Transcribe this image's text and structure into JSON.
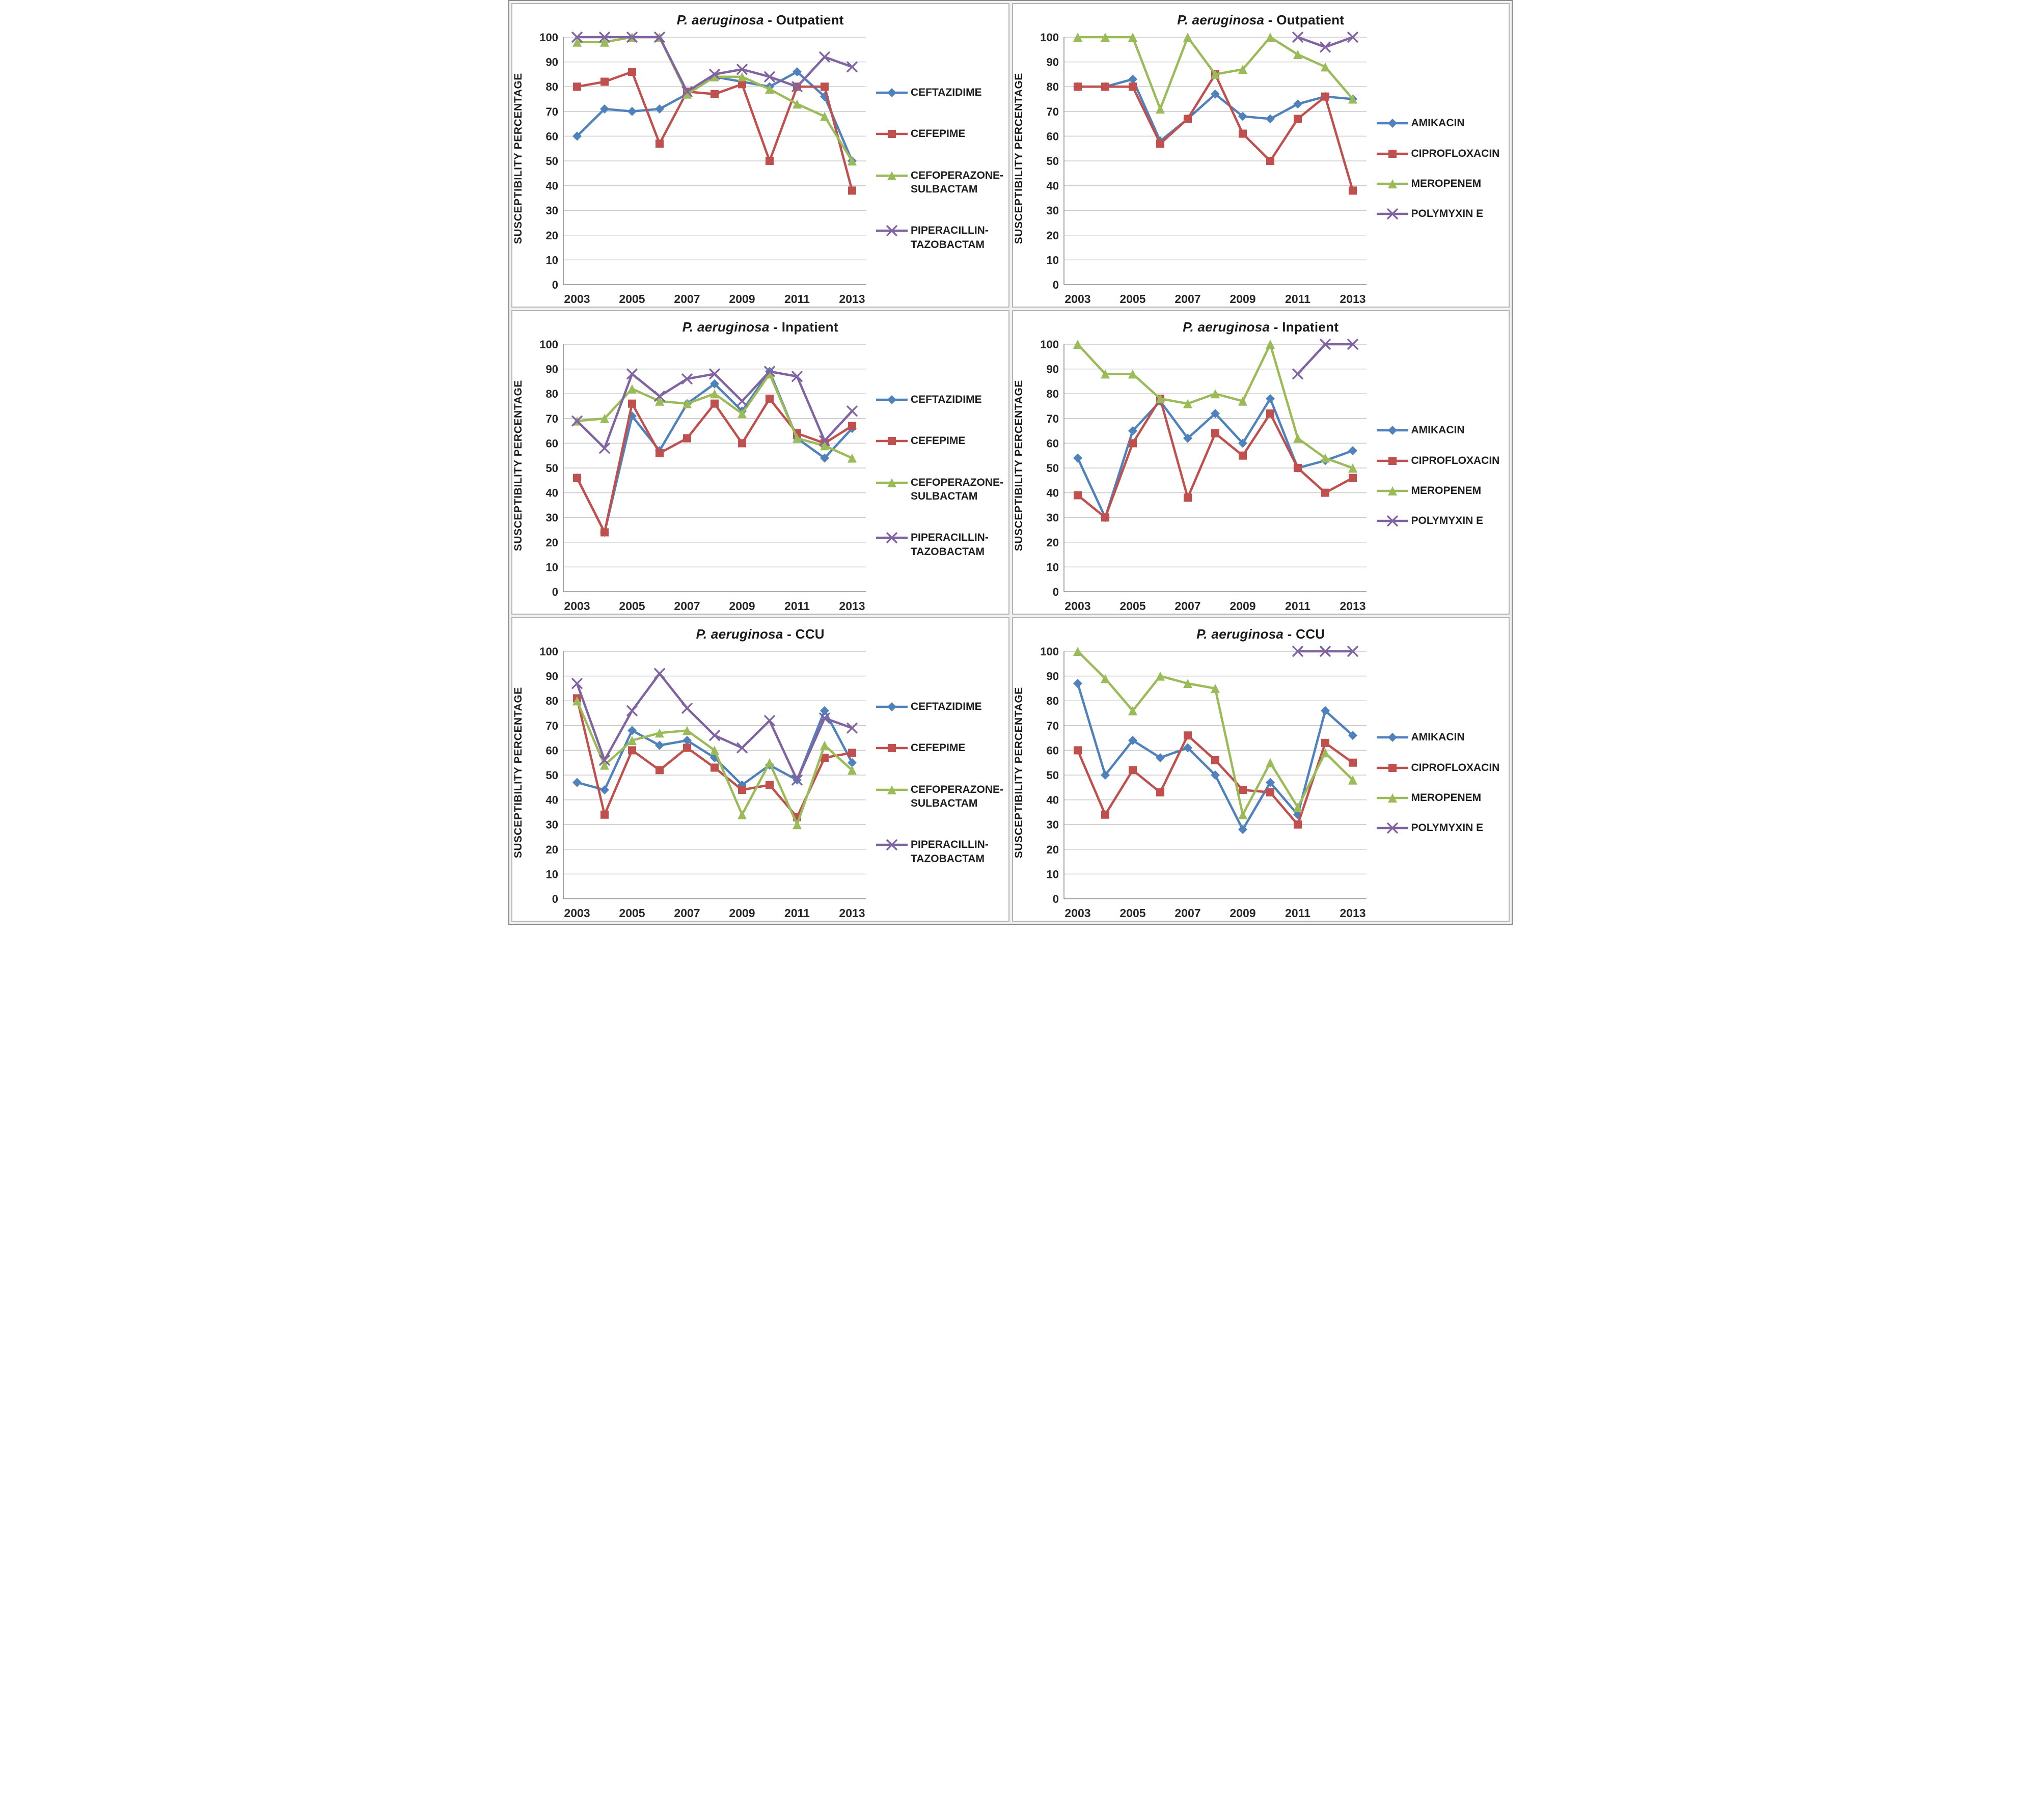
{
  "figure": {
    "ylabel": "SUSCEPTIBILITY  PERCENTAGE",
    "grid_color": "#c9c9c9",
    "axis_color": "#9a9a9a",
    "series_palette": {
      "blue": "#4F81BD",
      "red": "#C0504D",
      "green": "#9BBB59",
      "purple": "#8064A2"
    }
  },
  "chart_data": [
    {
      "type": "line",
      "title_italic": "P. aeruginosa",
      "title_rest": " - Outpatient",
      "ylabel": "SUSCEPTIBILITY  PERCENTAGE",
      "x": [
        2003,
        2004,
        2005,
        2006,
        2007,
        2008,
        2009,
        2010,
        2011,
        2012,
        2013
      ],
      "xtick_labels": [
        "2003",
        "2005",
        "2007",
        "2009",
        "2011",
        "2013"
      ],
      "ytick_labels": [
        "0",
        "10",
        "20",
        "30",
        "40",
        "50",
        "60",
        "70",
        "80",
        "90",
        "100"
      ],
      "ylim": [
        0,
        100
      ],
      "grid": "horizontal",
      "legend_position": "right",
      "legend_spread": true,
      "series": [
        {
          "name": "CEFTAZIDIME",
          "color": "#4F81BD",
          "marker": "diamond",
          "values": [
            60,
            71,
            70,
            71,
            77,
            84,
            82,
            80,
            86,
            76,
            50
          ]
        },
        {
          "name": "CEFEPIME",
          "color": "#C0504D",
          "marker": "square",
          "values": [
            80,
            82,
            86,
            57,
            78,
            77,
            81,
            50,
            80,
            80,
            38
          ]
        },
        {
          "name": "CEFOPERAZONE-SULBACTAM",
          "color": "#9BBB59",
          "marker": "triangle",
          "values": [
            98,
            98,
            100,
            100,
            77,
            84,
            84,
            79,
            73,
            68,
            50
          ]
        },
        {
          "name": "PIPERACILLIN-TAZOBACTAM",
          "color": "#8064A2",
          "marker": "x",
          "values": [
            100,
            100,
            100,
            100,
            78,
            85,
            87,
            84,
            80,
            92,
            88
          ]
        }
      ]
    },
    {
      "type": "line",
      "title_italic": "P. aeruginosa",
      "title_rest": " - Outpatient",
      "ylabel": "SUSCEPTIBILITY  PERCENTAGE",
      "x": [
        2003,
        2004,
        2005,
        2006,
        2007,
        2008,
        2009,
        2010,
        2011,
        2012,
        2013
      ],
      "xtick_labels": [
        "2003",
        "2005",
        "2007",
        "2009",
        "2011",
        "2013"
      ],
      "ytick_labels": [
        "0",
        "10",
        "20",
        "30",
        "40",
        "50",
        "60",
        "70",
        "80",
        "90",
        "100"
      ],
      "ylim": [
        0,
        100
      ],
      "grid": "horizontal",
      "legend_position": "right",
      "legend_spread": false,
      "series": [
        {
          "name": "AMIKACIN",
          "color": "#4F81BD",
          "marker": "diamond",
          "values": [
            80,
            80,
            83,
            58,
            67,
            77,
            68,
            67,
            73,
            76,
            75
          ]
        },
        {
          "name": "CIPROFLOXACIN",
          "color": "#C0504D",
          "marker": "square",
          "values": [
            80,
            80,
            80,
            57,
            67,
            85,
            61,
            50,
            67,
            76,
            38
          ]
        },
        {
          "name": "MEROPENEM",
          "color": "#9BBB59",
          "marker": "triangle",
          "values": [
            100,
            100,
            100,
            71,
            100,
            85,
            87,
            100,
            93,
            88,
            75
          ]
        },
        {
          "name": "POLYMYXIN E",
          "color": "#8064A2",
          "marker": "x",
          "values": [
            null,
            null,
            null,
            null,
            null,
            null,
            null,
            null,
            100,
            96,
            100
          ]
        }
      ]
    },
    {
      "type": "line",
      "title_italic": "P. aeruginosa",
      "title_rest": " - Inpatient",
      "ylabel": "SUSCEPTIBILITY  PERCENTAGE",
      "x": [
        2003,
        2004,
        2005,
        2006,
        2007,
        2008,
        2009,
        2010,
        2011,
        2012,
        2013
      ],
      "xtick_labels": [
        "2003",
        "2005",
        "2007",
        "2009",
        "2011",
        "2013"
      ],
      "ytick_labels": [
        "0",
        "10",
        "20",
        "30",
        "40",
        "50",
        "60",
        "70",
        "80",
        "90",
        "100"
      ],
      "ylim": [
        0,
        100
      ],
      "grid": "horizontal",
      "legend_position": "right",
      "legend_spread": true,
      "series": [
        {
          "name": "CEFTAZIDIME",
          "color": "#4F81BD",
          "marker": "diamond",
          "values": [
            46,
            24,
            71,
            57,
            76,
            84,
            73,
            89,
            62,
            54,
            66
          ]
        },
        {
          "name": "CEFEPIME",
          "color": "#C0504D",
          "marker": "square",
          "values": [
            46,
            24,
            76,
            56,
            62,
            76,
            60,
            78,
            64,
            60,
            67
          ]
        },
        {
          "name": "CEFOPERAZONE-SULBACTAM",
          "color": "#9BBB59",
          "marker": "triangle",
          "values": [
            69,
            70,
            82,
            77,
            76,
            80,
            72,
            88,
            62,
            59,
            54
          ]
        },
        {
          "name": "PIPERACILLIN-TAZOBACTAM",
          "color": "#8064A2",
          "marker": "x",
          "values": [
            69,
            58,
            88,
            79,
            86,
            88,
            77,
            89,
            87,
            61,
            73
          ]
        }
      ]
    },
    {
      "type": "line",
      "title_italic": "P. aeruginosa",
      "title_rest": " - Inpatient",
      "ylabel": "SUSCEPTIBILITY  PERCENTAGE",
      "x": [
        2003,
        2004,
        2005,
        2006,
        2007,
        2008,
        2009,
        2010,
        2011,
        2012,
        2013
      ],
      "xtick_labels": [
        "2003",
        "2005",
        "2007",
        "2009",
        "2011",
        "2013"
      ],
      "ytick_labels": [
        "0",
        "10",
        "20",
        "30",
        "40",
        "50",
        "60",
        "70",
        "80",
        "90",
        "100"
      ],
      "ylim": [
        0,
        100
      ],
      "grid": "horizontal",
      "legend_position": "right",
      "legend_spread": false,
      "series": [
        {
          "name": "AMIKACIN",
          "color": "#4F81BD",
          "marker": "diamond",
          "values": [
            54,
            30,
            65,
            77,
            62,
            72,
            60,
            78,
            50,
            53,
            57
          ]
        },
        {
          "name": "CIPROFLOXACIN",
          "color": "#C0504D",
          "marker": "square",
          "values": [
            39,
            30,
            60,
            78,
            38,
            64,
            55,
            72,
            50,
            40,
            46
          ]
        },
        {
          "name": "MEROPENEM",
          "color": "#9BBB59",
          "marker": "triangle",
          "values": [
            100,
            88,
            88,
            78,
            76,
            80,
            77,
            100,
            62,
            54,
            50
          ]
        },
        {
          "name": "POLYMYXIN E",
          "color": "#8064A2",
          "marker": "x",
          "values": [
            null,
            null,
            null,
            null,
            null,
            null,
            null,
            null,
            88,
            100,
            100
          ]
        }
      ]
    },
    {
      "type": "line",
      "title_italic": "P. aeruginosa",
      "title_rest": " - CCU",
      "ylabel": "SUSCEPTIBILITY  PERCENTAGE",
      "x": [
        2003,
        2004,
        2005,
        2006,
        2007,
        2008,
        2009,
        2010,
        2011,
        2012,
        2013
      ],
      "xtick_labels": [
        "2003",
        "2005",
        "2007",
        "2009",
        "2011",
        "2013"
      ],
      "ytick_labels": [
        "0",
        "10",
        "20",
        "30",
        "40",
        "50",
        "60",
        "70",
        "80",
        "90",
        "100"
      ],
      "ylim": [
        0,
        100
      ],
      "grid": "horizontal",
      "legend_position": "right",
      "legend_spread": true,
      "series": [
        {
          "name": "CEFTAZIDIME",
          "color": "#4F81BD",
          "marker": "diamond",
          "values": [
            47,
            44,
            68,
            62,
            64,
            57,
            46,
            54,
            48,
            76,
            55
          ]
        },
        {
          "name": "CEFEPIME",
          "color": "#C0504D",
          "marker": "square",
          "values": [
            81,
            34,
            60,
            52,
            61,
            53,
            44,
            46,
            33,
            57,
            59
          ]
        },
        {
          "name": "CEFOPERAZONE-SULBACTAM",
          "color": "#9BBB59",
          "marker": "triangle",
          "values": [
            80,
            54,
            64,
            67,
            68,
            60,
            34,
            55,
            30,
            62,
            52
          ]
        },
        {
          "name": "PIPERACILLIN-TAZOBACTAM",
          "color": "#8064A2",
          "marker": "x",
          "values": [
            87,
            56,
            76,
            91,
            77,
            66,
            61,
            72,
            48,
            73,
            69
          ]
        }
      ]
    },
    {
      "type": "line",
      "title_italic": "P. aeruginosa",
      "title_rest": " - CCU",
      "ylabel": "SUSCEPTIBILITY  PERCENTAGE",
      "x": [
        2003,
        2004,
        2005,
        2006,
        2007,
        2008,
        2009,
        2010,
        2011,
        2012,
        2013
      ],
      "xtick_labels": [
        "2003",
        "2005",
        "2007",
        "2009",
        "2011",
        "2013"
      ],
      "ytick_labels": [
        "0",
        "10",
        "20",
        "30",
        "40",
        "50",
        "60",
        "70",
        "80",
        "90",
        "100"
      ],
      "ylim": [
        0,
        100
      ],
      "grid": "horizontal",
      "legend_position": "right",
      "legend_spread": false,
      "series": [
        {
          "name": "AMIKACIN",
          "color": "#4F81BD",
          "marker": "diamond",
          "values": [
            87,
            50,
            64,
            57,
            61,
            50,
            28,
            47,
            34,
            76,
            66
          ]
        },
        {
          "name": "CIPROFLOXACIN",
          "color": "#C0504D",
          "marker": "square",
          "values": [
            60,
            34,
            52,
            43,
            66,
            56,
            44,
            43,
            30,
            63,
            55
          ]
        },
        {
          "name": "MEROPENEM",
          "color": "#9BBB59",
          "marker": "triangle",
          "values": [
            100,
            89,
            76,
            90,
            87,
            85,
            34,
            55,
            37,
            59,
            48
          ]
        },
        {
          "name": "POLYMYXIN E",
          "color": "#8064A2",
          "marker": "x",
          "values": [
            null,
            null,
            null,
            null,
            null,
            null,
            null,
            null,
            100,
            100,
            100
          ]
        }
      ]
    }
  ]
}
